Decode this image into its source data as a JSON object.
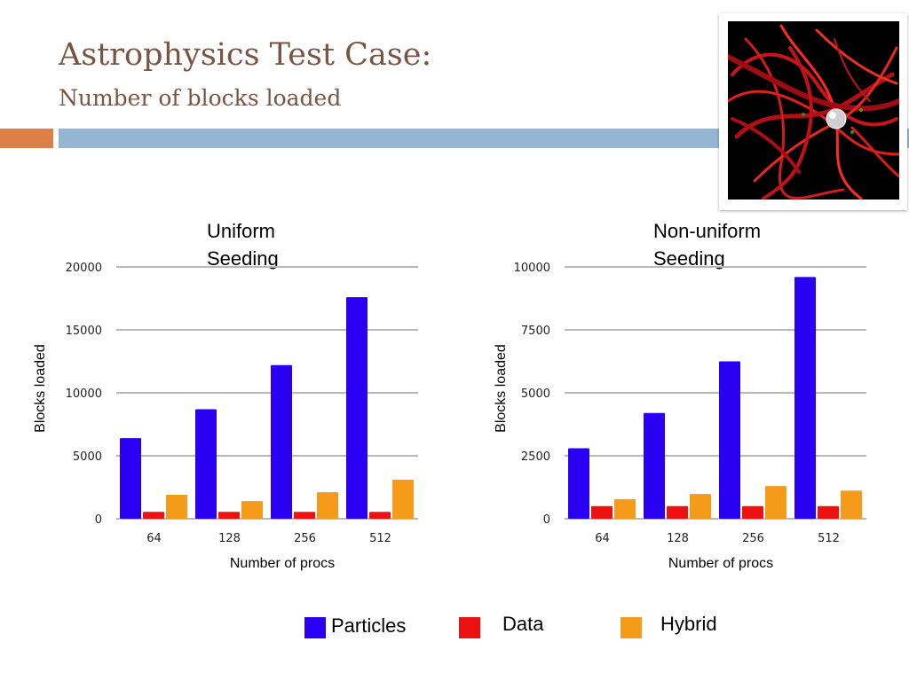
{
  "slide": {
    "title": "Astrophysics Test Case:",
    "subtitle": "Number of blocks loaded"
  },
  "colors": {
    "particles": "#2a00f2",
    "data": "#ee1111",
    "hybrid": "#f69a1a",
    "grid": "#b8b8b8"
  },
  "legend": {
    "items": [
      {
        "label": "Particles",
        "color": "#2a00f2"
      },
      {
        "label": "Data",
        "color": "#ee1111"
      },
      {
        "label": "Hybrid",
        "color": "#f69a1a"
      }
    ]
  },
  "chart_data": [
    {
      "type": "bar",
      "title": "Uniform\nSeeding",
      "title_lines": [
        "Uniform",
        "Seeding"
      ],
      "xlabel": "Number of procs",
      "ylabel": "Blocks loaded",
      "categories": [
        "64",
        "128",
        "256",
        "512"
      ],
      "ylim": [
        0,
        20000
      ],
      "yticks": [
        "0",
        "5000",
        "10000",
        "15000",
        "20000"
      ],
      "grid": true,
      "series": [
        {
          "name": "Particles",
          "values": [
            6400,
            8700,
            12200,
            17600
          ]
        },
        {
          "name": "Data",
          "values": [
            550,
            550,
            550,
            550
          ]
        },
        {
          "name": "Hybrid",
          "values": [
            1900,
            1400,
            2100,
            3100
          ]
        }
      ]
    },
    {
      "type": "bar",
      "title": "Non-uniform\nSeeding",
      "title_lines": [
        "Non-uniform",
        "Seeding"
      ],
      "xlabel": "Number of procs",
      "ylabel": "Blocks loaded",
      "categories": [
        "64",
        "128",
        "256",
        "512"
      ],
      "ylim": [
        0,
        10000
      ],
      "yticks": [
        "0",
        "2500",
        "5000",
        "7500",
        "10000"
      ],
      "grid": true,
      "series": [
        {
          "name": "Particles",
          "values": [
            2800,
            4200,
            6250,
            9600
          ]
        },
        {
          "name": "Data",
          "values": [
            500,
            500,
            500,
            500
          ]
        },
        {
          "name": "Hybrid",
          "values": [
            780,
            980,
            1300,
            1120
          ]
        }
      ]
    }
  ]
}
